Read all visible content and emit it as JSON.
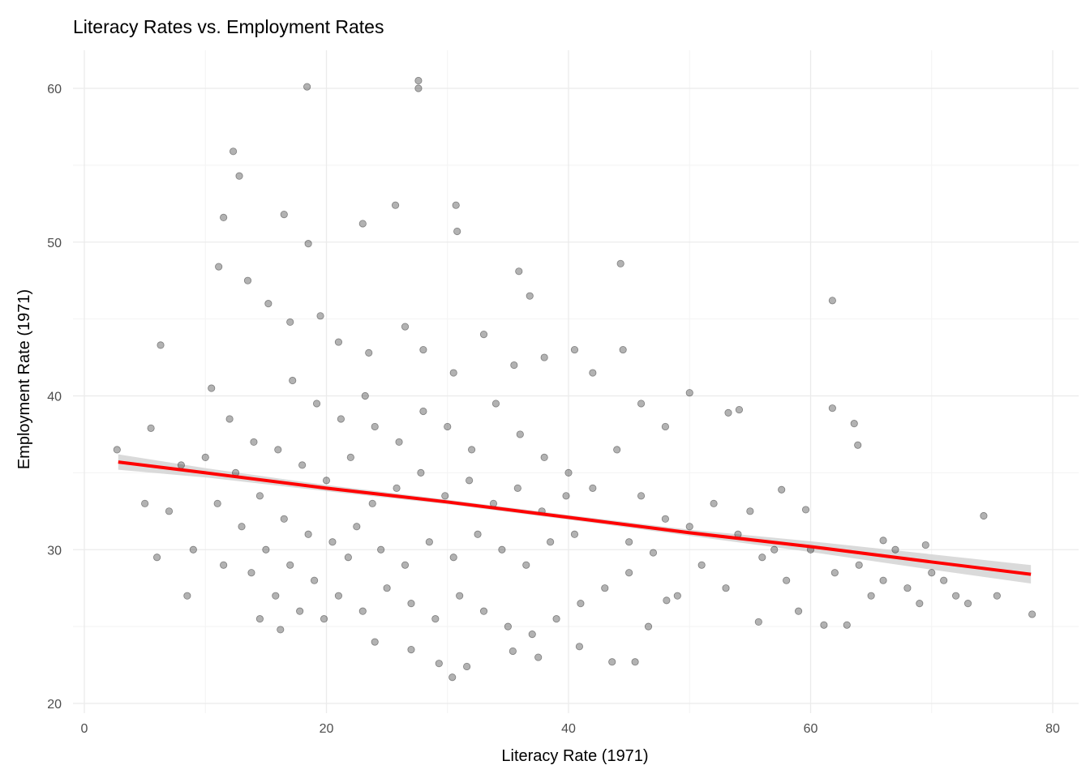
{
  "chart_data": {
    "type": "scatter",
    "title": "Literacy Rates vs. Employment Rates",
    "xlabel": "Literacy Rate (1971)",
    "ylabel": "Employment Rate (1971)",
    "xlim": [
      -1,
      82
    ],
    "ylim": [
      19.5,
      62.5
    ],
    "x_ticks": [
      0,
      20,
      40,
      60,
      80
    ],
    "y_ticks": [
      20,
      30,
      40,
      50,
      60
    ],
    "grid": true,
    "legend": "none",
    "colors": {
      "points": "#000000",
      "fit_line": "#ff0000",
      "confidence_band": "#d3d3d3",
      "grid": "#ebebeb"
    },
    "points": [
      [
        18.4,
        60.1
      ],
      [
        27.6,
        60.5
      ],
      [
        27.6,
        60.0
      ],
      [
        12.3,
        55.9
      ],
      [
        12.8,
        54.3
      ],
      [
        30.7,
        52.4
      ],
      [
        30.8,
        50.7
      ],
      [
        25.7,
        52.4
      ],
      [
        23.0,
        51.2
      ],
      [
        61.8,
        46.2
      ],
      [
        44.3,
        48.6
      ],
      [
        63.9,
        36.8
      ],
      [
        74.3,
        32.2
      ],
      [
        78.3,
        25.8
      ],
      [
        75.4,
        27.0
      ],
      [
        61.8,
        39.2
      ],
      [
        63.6,
        38.2
      ],
      [
        2.7,
        36.5
      ],
      [
        5.5,
        37.9
      ],
      [
        6.3,
        43.3
      ],
      [
        8.5,
        27.0
      ],
      [
        30.4,
        21.7
      ],
      [
        29.3,
        22.6
      ],
      [
        31.6,
        22.4
      ],
      [
        43.6,
        22.7
      ],
      [
        45.5,
        22.7
      ],
      [
        35.9,
        48.1
      ],
      [
        36.8,
        46.5
      ],
      [
        50.0,
        40.2
      ],
      [
        54.1,
        39.1
      ],
      [
        53.2,
        38.9
      ],
      [
        57.6,
        33.9
      ],
      [
        59.6,
        32.6
      ],
      [
        66.0,
        30.6
      ],
      [
        69.5,
        30.3
      ],
      [
        61.1,
        25.1
      ],
      [
        63.0,
        25.1
      ],
      [
        55.7,
        25.3
      ],
      [
        48.1,
        26.7
      ],
      [
        46.6,
        25.0
      ],
      [
        40.9,
        23.7
      ],
      [
        35.4,
        23.4
      ],
      [
        18.5,
        49.9
      ],
      [
        11.1,
        48.4
      ],
      [
        16.5,
        51.8
      ],
      [
        11.5,
        51.6
      ],
      [
        13.5,
        47.5
      ],
      [
        15.2,
        46.0
      ],
      [
        17.0,
        44.8
      ],
      [
        19.5,
        45.2
      ],
      [
        21.0,
        43.5
      ],
      [
        23.5,
        42.8
      ],
      [
        26.5,
        44.5
      ],
      [
        28.0,
        43.0
      ],
      [
        30.5,
        41.5
      ],
      [
        33.0,
        44.0
      ],
      [
        35.5,
        42.0
      ],
      [
        38.0,
        42.5
      ],
      [
        40.5,
        43.0
      ],
      [
        42.0,
        41.5
      ],
      [
        44.5,
        43.0
      ],
      [
        46.0,
        39.5
      ],
      [
        48.0,
        38.0
      ],
      [
        10.5,
        40.5
      ],
      [
        12.0,
        38.5
      ],
      [
        14.0,
        37.0
      ],
      [
        16.0,
        36.5
      ],
      [
        18.0,
        35.5
      ],
      [
        20.0,
        34.5
      ],
      [
        22.0,
        36.0
      ],
      [
        24.0,
        38.0
      ],
      [
        26.0,
        37.0
      ],
      [
        28.0,
        39.0
      ],
      [
        30.0,
        38.0
      ],
      [
        32.0,
        36.5
      ],
      [
        34.0,
        39.5
      ],
      [
        36.0,
        37.5
      ],
      [
        38.0,
        36.0
      ],
      [
        40.0,
        35.0
      ],
      [
        42.0,
        34.0
      ],
      [
        44.0,
        36.5
      ],
      [
        46.0,
        33.5
      ],
      [
        48.0,
        32.0
      ],
      [
        50.0,
        31.5
      ],
      [
        52.0,
        33.0
      ],
      [
        54.0,
        31.0
      ],
      [
        56.0,
        29.5
      ],
      [
        58.0,
        28.0
      ],
      [
        60.0,
        30.0
      ],
      [
        62.0,
        28.5
      ],
      [
        64.0,
        29.0
      ],
      [
        66.0,
        28.0
      ],
      [
        68.0,
        27.5
      ],
      [
        70.0,
        28.5
      ],
      [
        72.0,
        27.0
      ],
      [
        11.0,
        33.0
      ],
      [
        13.0,
        31.5
      ],
      [
        15.0,
        30.0
      ],
      [
        17.0,
        29.0
      ],
      [
        19.0,
        28.0
      ],
      [
        21.0,
        27.0
      ],
      [
        23.0,
        26.0
      ],
      [
        25.0,
        27.5
      ],
      [
        27.0,
        26.5
      ],
      [
        29.0,
        25.5
      ],
      [
        31.0,
        27.0
      ],
      [
        33.0,
        26.0
      ],
      [
        35.0,
        25.0
      ],
      [
        37.0,
        24.5
      ],
      [
        39.0,
        25.5
      ],
      [
        41.0,
        26.5
      ],
      [
        43.0,
        27.5
      ],
      [
        45.0,
        28.5
      ],
      [
        12.5,
        35.0
      ],
      [
        14.5,
        33.5
      ],
      [
        16.5,
        32.0
      ],
      [
        18.5,
        31.0
      ],
      [
        20.5,
        30.5
      ],
      [
        22.5,
        31.5
      ],
      [
        24.5,
        30.0
      ],
      [
        26.5,
        29.0
      ],
      [
        28.5,
        30.5
      ],
      [
        30.5,
        29.5
      ],
      [
        32.5,
        31.0
      ],
      [
        34.5,
        30.0
      ],
      [
        36.5,
        29.0
      ],
      [
        38.5,
        30.5
      ],
      [
        40.5,
        31.0
      ],
      [
        13.8,
        28.5
      ],
      [
        15.8,
        27.0
      ],
      [
        17.8,
        26.0
      ],
      [
        19.8,
        25.5
      ],
      [
        21.8,
        29.5
      ],
      [
        23.8,
        33.0
      ],
      [
        25.8,
        34.0
      ],
      [
        27.8,
        35.0
      ],
      [
        29.8,
        33.5
      ],
      [
        31.8,
        34.5
      ],
      [
        33.8,
        33.0
      ],
      [
        35.8,
        34.0
      ],
      [
        37.8,
        32.5
      ],
      [
        39.8,
        33.5
      ],
      [
        17.2,
        41.0
      ],
      [
        19.2,
        39.5
      ],
      [
        21.2,
        38.5
      ],
      [
        23.2,
        40.0
      ],
      [
        9.0,
        30.0
      ],
      [
        7.0,
        32.5
      ],
      [
        8.0,
        35.5
      ],
      [
        6.0,
        29.5
      ],
      [
        5.0,
        33.0
      ],
      [
        10.0,
        36.0
      ],
      [
        11.5,
        29.0
      ],
      [
        14.5,
        25.5
      ],
      [
        16.2,
        24.8
      ],
      [
        24.0,
        24.0
      ],
      [
        27.0,
        23.5
      ],
      [
        37.5,
        23.0
      ],
      [
        45.0,
        30.5
      ],
      [
        47.0,
        29.8
      ],
      [
        49.0,
        27.0
      ],
      [
        51.0,
        29.0
      ],
      [
        53.0,
        27.5
      ],
      [
        55.0,
        32.5
      ],
      [
        57.0,
        30.0
      ],
      [
        59.0,
        26.0
      ],
      [
        65.0,
        27.0
      ],
      [
        67.0,
        30.0
      ],
      [
        69.0,
        26.5
      ],
      [
        71.0,
        28.0
      ],
      [
        73.0,
        26.5
      ]
    ],
    "fit": {
      "method": "smooth",
      "x": [
        2.8,
        10,
        20,
        30,
        40,
        50,
        60,
        70,
        78.2
      ],
      "y": [
        35.7,
        35.0,
        34.0,
        33.1,
        32.1,
        31.1,
        30.2,
        29.2,
        28.4
      ],
      "lower": [
        35.2,
        34.7,
        33.8,
        32.95,
        31.95,
        30.9,
        29.85,
        28.7,
        27.8
      ],
      "upper": [
        36.2,
        35.3,
        34.2,
        33.25,
        32.25,
        31.3,
        30.55,
        29.7,
        29.0
      ]
    }
  }
}
